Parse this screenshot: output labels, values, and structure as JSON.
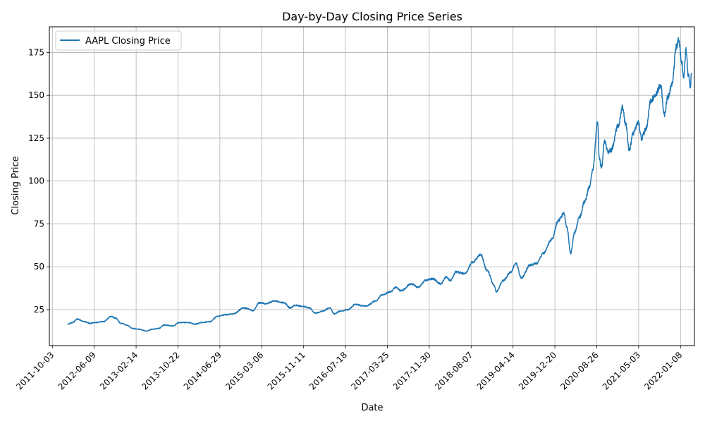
{
  "chart_data": {
    "type": "line",
    "title": "Day-by-Day Closing Price Series",
    "xlabel": "Date",
    "ylabel": "Closing Price",
    "ylim": [
      4,
      190
    ],
    "xlim": [
      "2011-09-15",
      "2022-04-01"
    ],
    "grid": true,
    "legend_position": "top-left",
    "line_color": "#1f77b4",
    "x_tick_labels": [
      "2011-10-03",
      "2012-06-09",
      "2013-02-14",
      "2013-10-22",
      "2014-06-29",
      "2015-03-06",
      "2015-11-11",
      "2016-07-18",
      "2017-03-25",
      "2017-11-30",
      "2018-08-07",
      "2019-04-14",
      "2019-12-20",
      "2020-08-26",
      "2021-05-03",
      "2022-01-08"
    ],
    "y_ticks": [
      25,
      50,
      75,
      100,
      125,
      150,
      175
    ],
    "series": [
      {
        "name": "AAPL Closing Price",
        "x": [
          "2012-01-03",
          "2012-02-01",
          "2012-03-01",
          "2012-04-10",
          "2012-05-15",
          "2012-06-15",
          "2012-08-01",
          "2012-09-19",
          "2012-10-15",
          "2012-11-16",
          "2012-12-20",
          "2013-01-25",
          "2013-03-01",
          "2013-04-19",
          "2013-05-20",
          "2013-06-28",
          "2013-08-01",
          "2013-09-20",
          "2013-11-01",
          "2013-12-20",
          "2014-02-01",
          "2014-03-15",
          "2014-05-01",
          "2014-06-15",
          "2014-08-01",
          "2014-09-15",
          "2014-11-20",
          "2015-01-15",
          "2015-02-20",
          "2015-04-01",
          "2015-05-20",
          "2015-07-15",
          "2015-08-24",
          "2015-09-20",
          "2015-11-01",
          "2015-12-15",
          "2016-01-20",
          "2016-03-01",
          "2016-04-15",
          "2016-05-12",
          "2016-06-15",
          "2016-08-01",
          "2016-09-15",
          "2016-11-15",
          "2017-01-15",
          "2017-02-20",
          "2017-04-15",
          "2017-05-12",
          "2017-06-15",
          "2017-08-15",
          "2017-09-25",
          "2017-11-08",
          "2017-12-20",
          "2018-02-08",
          "2018-03-10",
          "2018-04-05",
          "2018-05-10",
          "2018-07-01",
          "2018-08-15",
          "2018-10-03",
          "2018-11-10",
          "2018-12-24",
          "2019-01-03",
          "2019-02-15",
          "2019-04-01",
          "2019-05-01",
          "2019-06-03",
          "2019-07-25",
          "2019-09-01",
          "2019-10-15",
          "2019-12-01",
          "2020-01-10",
          "2020-02-12",
          "2020-03-01",
          "2020-03-23",
          "2020-04-15",
          "2020-05-15",
          "2020-06-15",
          "2020-07-15",
          "2020-08-01",
          "2020-08-31",
          "2020-09-10",
          "2020-09-23",
          "2020-10-12",
          "2020-11-01",
          "2020-11-20",
          "2020-12-31",
          "2021-01-26",
          "2021-02-15",
          "2021-03-08",
          "2021-04-01",
          "2021-05-01",
          "2021-05-20",
          "2021-06-15",
          "2021-07-15",
          "2021-08-15",
          "2021-09-10",
          "2021-10-04",
          "2021-10-25",
          "2021-11-20",
          "2021-12-13",
          "2021-12-28",
          "2022-01-15",
          "2022-01-27",
          "2022-02-10",
          "2022-02-24",
          "2022-03-08",
          "2022-03-15"
        ],
        "values": [
          16.5,
          17.5,
          19.5,
          18.0,
          17.0,
          17.5,
          18.0,
          21.0,
          20.0,
          17.0,
          16.0,
          14.0,
          13.5,
          12.5,
          13.5,
          14.0,
          16.0,
          15.5,
          17.5,
          17.5,
          16.5,
          17.5,
          18.0,
          21.0,
          22.0,
          22.5,
          26.0,
          24.5,
          29.0,
          28.5,
          30.0,
          29.0,
          26.0,
          27.5,
          27.0,
          26.0,
          23.0,
          24.0,
          26.0,
          22.5,
          24.0,
          25.0,
          28.0,
          27.0,
          30.0,
          33.5,
          35.5,
          38.0,
          36.0,
          40.0,
          38.0,
          42.0,
          43.0,
          40.0,
          44.0,
          42.0,
          47.0,
          46.0,
          52.5,
          57.0,
          48.0,
          39.0,
          35.5,
          42.0,
          47.0,
          52.0,
          43.5,
          51.0,
          52.0,
          58.0,
          66.0,
          77.0,
          81.0,
          73.0,
          58.0,
          70.0,
          79.0,
          88.0,
          97.0,
          106.0,
          134.0,
          113.0,
          108.0,
          123.0,
          117.0,
          118.0,
          132.0,
          143.0,
          133.0,
          118.0,
          128.0,
          134.0,
          125.0,
          130.0,
          147.0,
          151.0,
          156.0,
          139.0,
          149.0,
          157.0,
          178.0,
          182.0,
          170.0,
          160.0,
          176.0,
          162.0,
          155.0,
          163.0
        ]
      }
    ]
  }
}
